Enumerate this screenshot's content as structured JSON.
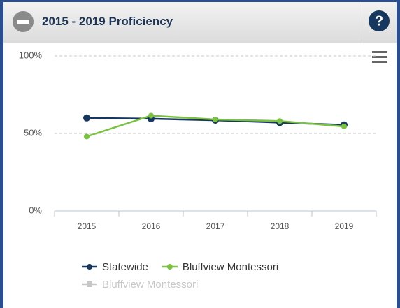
{
  "header": {
    "title": "2015 - 2019 Proficiency"
  },
  "chart_data": {
    "type": "line",
    "categories": [
      "2015",
      "2016",
      "2017",
      "2018",
      "2019"
    ],
    "series": [
      {
        "name": "Statewide",
        "color": "#17375e",
        "values": [
          60,
          59.5,
          58.5,
          57,
          55.5
        ]
      },
      {
        "name": "Bluffview Montessori",
        "color": "#7ac143",
        "values": [
          48,
          61.5,
          59,
          58,
          54.5
        ]
      }
    ],
    "hidden_series": [
      {
        "name": "Bluffview Montessori",
        "color": "#c8c8c8"
      }
    ],
    "ylim": [
      0,
      100
    ],
    "yticks": [
      {
        "value": 0,
        "label": "0%"
      },
      {
        "value": 50,
        "label": "50%"
      },
      {
        "value": 100,
        "label": "100%"
      }
    ],
    "grid": true
  }
}
